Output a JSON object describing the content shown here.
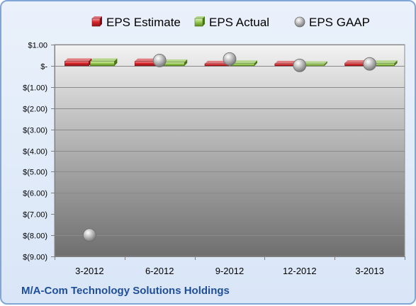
{
  "company": "M/A-Com Technology Solutions Holdings",
  "chart_data": {
    "type": "bar",
    "categories": [
      "3-2012",
      "6-2012",
      "9-2012",
      "12-2012",
      "3-2013"
    ],
    "series": [
      {
        "name": "EPS Estimate",
        "type": "bar",
        "color": "#d9262b",
        "values": [
          0.22,
          0.21,
          0.1,
          0.1,
          0.13
        ]
      },
      {
        "name": "EPS Actual",
        "type": "bar",
        "color": "#8cc63f",
        "values": [
          0.22,
          0.17,
          0.12,
          0.08,
          0.12
        ]
      },
      {
        "name": "EPS GAAP",
        "type": "scatter",
        "color": "#a6a6a6",
        "values": [
          -7.99,
          0.25,
          0.32,
          0.02,
          0.09
        ]
      }
    ],
    "ylim": [
      -9.0,
      1.0
    ],
    "yticks": [
      1.0,
      0.0,
      -1.0,
      -2.0,
      -3.0,
      -4.0,
      -5.0,
      -6.0,
      -7.0,
      -8.0,
      -9.0
    ],
    "ytick_labels": [
      "$1.00",
      "$-",
      "$(1.00)",
      "$(2.00)",
      "$(3.00)",
      "$(4.00)",
      "$(5.00)",
      "$(6.00)",
      "$(7.00)",
      "$(8.00)",
      "$(9.00)"
    ],
    "grid": true,
    "legend": "top"
  }
}
